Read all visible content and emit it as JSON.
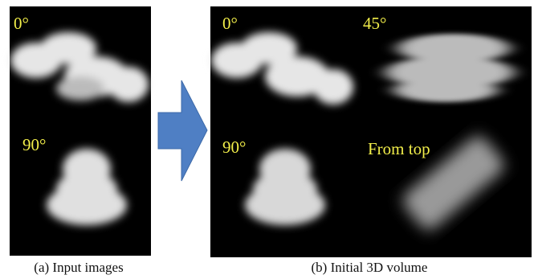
{
  "panels": [
    {
      "caption": "(a) Input images",
      "labels": [
        "0°",
        "90°"
      ]
    },
    {
      "caption": "(b) Initial 3D volume",
      "labels": [
        "0°",
        "45°",
        "90°",
        "From top"
      ]
    }
  ]
}
